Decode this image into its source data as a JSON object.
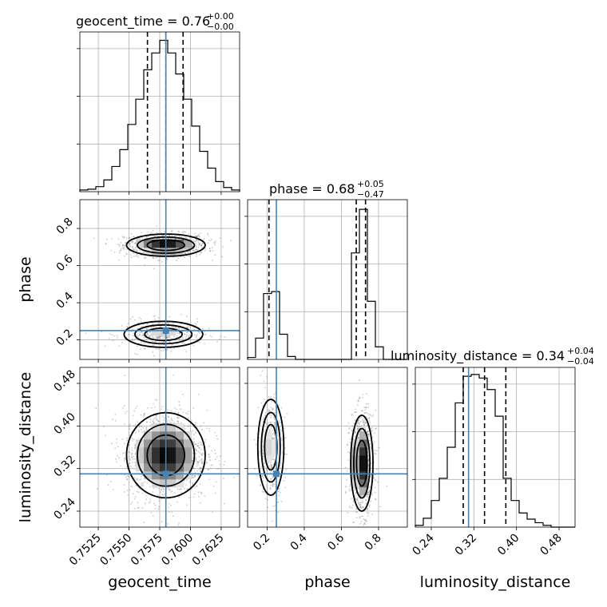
{
  "chart_data": {
    "type": "corner",
    "parameters": [
      "geocent_time",
      "phase",
      "luminosity_distance"
    ],
    "truths": {
      "geocent_time": 0.758,
      "phase": 0.25,
      "luminosity_distance": 0.31
    },
    "titles": [
      {
        "param": "geocent_time",
        "text": "geocent_time = 0.76",
        "sup": "+0.00",
        "sub": "−0.00"
      },
      {
        "param": "phase",
        "text": "phase = 0.68",
        "sup": "+0.05",
        "sub": "−0.47"
      },
      {
        "param": "luminosity_distance",
        "text": "luminosity_distance = 0.34",
        "sup": "+0.04",
        "sub": "−0.04"
      }
    ],
    "axes": {
      "geocent_time": {
        "range": [
          0.751,
          0.764
        ],
        "ticks": [
          0.7525,
          0.755,
          0.7575,
          0.76,
          0.7625
        ],
        "tick_labels": [
          "0.7525",
          "0.7550",
          "0.7575",
          "0.7600",
          "0.7625"
        ],
        "label": "geocent_time"
      },
      "phase": {
        "range": [
          0.095,
          0.955
        ],
        "ticks": [
          0.2,
          0.4,
          0.6,
          0.8
        ],
        "tick_labels": [
          "0.2",
          "0.4",
          "0.6",
          "0.8"
        ],
        "label": "phase"
      },
      "luminosity_distance": {
        "range": [
          0.21,
          0.51
        ],
        "ticks": [
          0.24,
          0.32,
          0.4,
          0.48
        ],
        "tick_labels": [
          "0.24",
          "0.32",
          "0.40",
          "0.48"
        ],
        "label": "luminosity_distance"
      }
    },
    "histograms": [
      {
        "param": "geocent_time",
        "edges": [
          0.751,
          0.75165,
          0.7523,
          0.75295,
          0.7536,
          0.75425,
          0.7549,
          0.75555,
          0.7562,
          0.75685,
          0.7575,
          0.75815,
          0.7588,
          0.75945,
          0.7601,
          0.76075,
          0.7614,
          0.76205,
          0.7627,
          0.76335,
          0.764
        ],
        "counts": [
          2,
          3,
          6,
          14,
          30,
          50,
          80,
          110,
          145,
          165,
          180,
          165,
          140,
          110,
          78,
          48,
          28,
          12,
          5,
          2
        ],
        "ymax": 190,
        "quantiles": [
          0.7565,
          0.758,
          0.7594
        ]
      },
      {
        "param": "phase",
        "edges": [
          0.095,
          0.138,
          0.181,
          0.224,
          0.267,
          0.31,
          0.353,
          0.396,
          0.439,
          0.482,
          0.525,
          0.568,
          0.611,
          0.654,
          0.697,
          0.74,
          0.783,
          0.826,
          0.869,
          0.912,
          0.955
        ],
        "counts": [
          2,
          22,
          68,
          70,
          26,
          3,
          0,
          0,
          0,
          0,
          0,
          0,
          0,
          110,
          155,
          60,
          13,
          0,
          0,
          0
        ],
        "ymax": 165,
        "quantiles": [
          0.21,
          0.68,
          0.73
        ]
      },
      {
        "param": "luminosity_distance",
        "edges": [
          0.21,
          0.225,
          0.24,
          0.255,
          0.27,
          0.285,
          0.3,
          0.315,
          0.33,
          0.345,
          0.36,
          0.375,
          0.39,
          0.405,
          0.42,
          0.435,
          0.45,
          0.465,
          0.48,
          0.495,
          0.51
        ],
        "counts": [
          2,
          10,
          30,
          55,
          90,
          140,
          170,
          172,
          168,
          155,
          125,
          55,
          30,
          16,
          9,
          5,
          2,
          0,
          0,
          0
        ],
        "ymax": 180,
        "quantiles": [
          0.3,
          0.34,
          0.38
        ]
      }
    ],
    "pairs": [
      {
        "x": "geocent_time",
        "y": "phase",
        "modes": [
          {
            "cx": 0.758,
            "cy": 0.71,
            "sx": 0.0016,
            "sy": 0.03,
            "weight": 0.7
          },
          {
            "cx": 0.7578,
            "cy": 0.23,
            "sx": 0.0016,
            "sy": 0.035,
            "weight": 0.3
          }
        ]
      },
      {
        "x": "geocent_time",
        "y": "luminosity_distance",
        "modes": [
          {
            "cx": 0.758,
            "cy": 0.345,
            "sx": 0.0016,
            "sy": 0.04,
            "weight": 1.0
          }
        ]
      },
      {
        "x": "phase",
        "y": "luminosity_distance",
        "modes": [
          {
            "cx": 0.71,
            "cy": 0.33,
            "sx": 0.03,
            "sy": 0.045,
            "weight": 0.7
          },
          {
            "cx": 0.22,
            "cy": 0.36,
            "sx": 0.035,
            "sy": 0.045,
            "weight": 0.3
          }
        ]
      }
    ]
  }
}
